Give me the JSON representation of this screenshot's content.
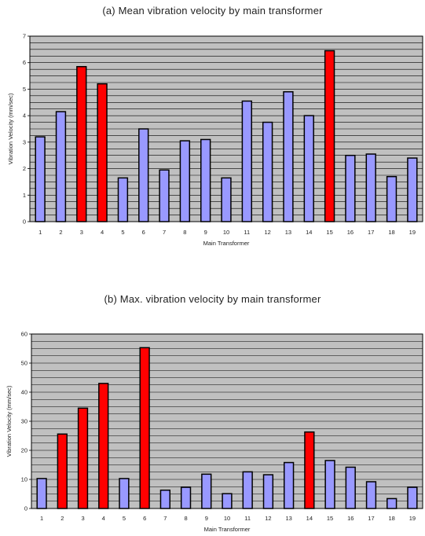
{
  "chart_data": [
    {
      "type": "bar",
      "title": "(a) Mean vibration velocity by main transformer",
      "xlabel": "Main Transformer",
      "ylabel": "Vibration Velocity (mm/sec)",
      "categories": [
        "1",
        "2",
        "3",
        "4",
        "5",
        "6",
        "7",
        "8",
        "9",
        "10",
        "11",
        "12",
        "13",
        "14",
        "15",
        "16",
        "17",
        "18",
        "19"
      ],
      "values": [
        3.2,
        4.15,
        5.85,
        5.2,
        1.65,
        3.5,
        1.95,
        3.05,
        3.1,
        1.65,
        4.55,
        3.75,
        4.9,
        4.0,
        6.45,
        2.5,
        2.55,
        1.7,
        2.4
      ],
      "highlight": [
        false,
        false,
        true,
        true,
        false,
        false,
        false,
        false,
        false,
        false,
        false,
        false,
        false,
        false,
        true,
        false,
        false,
        false,
        false
      ],
      "ylim": [
        0,
        7
      ],
      "yticks": [
        "0",
        "1",
        "2",
        "3",
        "4",
        "5",
        "6",
        "7"
      ],
      "grid": true,
      "colors": {
        "bar": "#9999ff",
        "highlight": "#ff0000",
        "plot_bg": "#c0c0c0",
        "grid": "#000000"
      }
    },
    {
      "type": "bar",
      "title": "(b) Max. vibration velocity by main transformer",
      "xlabel": "Main Transformer",
      "ylabel": "Vibration Velocity (mm/sec)",
      "categories": [
        "1",
        "2",
        "3",
        "4",
        "5",
        "6",
        "7",
        "8",
        "9",
        "10",
        "11",
        "12",
        "13",
        "14",
        "15",
        "16",
        "17",
        "18",
        "19"
      ],
      "values": [
        10.3,
        25.6,
        34.5,
        43,
        10.3,
        55.3,
        6.3,
        7.3,
        11.8,
        5.1,
        12.6,
        11.6,
        15.8,
        26.3,
        16.5,
        14.2,
        9.2,
        3.4,
        7.3
      ],
      "highlight": [
        false,
        true,
        true,
        true,
        false,
        true,
        false,
        false,
        false,
        false,
        false,
        false,
        false,
        true,
        false,
        false,
        false,
        false,
        false
      ],
      "ylim": [
        0,
        60
      ],
      "yticks": [
        "0",
        "10",
        "20",
        "30",
        "40",
        "50",
        "60"
      ],
      "grid": true,
      "colors": {
        "bar": "#9999ff",
        "highlight": "#ff0000",
        "plot_bg": "#c0c0c0",
        "grid": "#000000"
      }
    }
  ]
}
